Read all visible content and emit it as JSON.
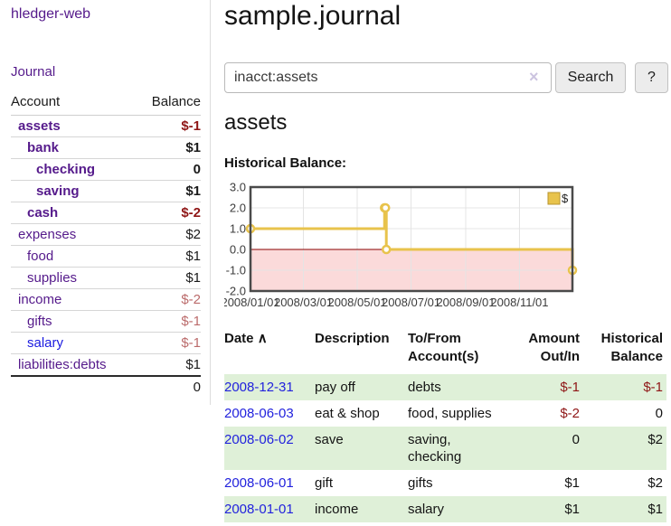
{
  "app": {
    "title": "hledger-web"
  },
  "sidebar": {
    "journal_label": "Journal",
    "accounts_table": {
      "account_header": "Account",
      "balance_header": "Balance",
      "rows": [
        {
          "account": "assets",
          "balance": "$-1",
          "indent": 0,
          "in_acct": true,
          "balance_style": "negative-strong",
          "link_state": "visited"
        },
        {
          "account": "bank",
          "balance": "$1",
          "indent": 1,
          "in_acct": true,
          "balance_style": "normal",
          "link_state": "visited"
        },
        {
          "account": "checking",
          "balance": "0",
          "indent": 2,
          "in_acct": true,
          "balance_style": "normal",
          "link_state": "visited"
        },
        {
          "account": "saving",
          "balance": "$1",
          "indent": 2,
          "in_acct": true,
          "balance_style": "normal",
          "link_state": "visited"
        },
        {
          "account": "cash",
          "balance": "$-2",
          "indent": 1,
          "in_acct": true,
          "balance_style": "negative-strong",
          "link_state": "visited"
        },
        {
          "account": "expenses",
          "balance": "$2",
          "indent": 0,
          "in_acct": false,
          "balance_style": "normal",
          "link_state": "visited"
        },
        {
          "account": "food",
          "balance": "$1",
          "indent": 1,
          "in_acct": false,
          "balance_style": "normal",
          "link_state": "visited"
        },
        {
          "account": "supplies",
          "balance": "$1",
          "indent": 1,
          "in_acct": false,
          "balance_style": "normal",
          "link_state": "visited"
        },
        {
          "account": "income",
          "balance": "$-2",
          "indent": 0,
          "in_acct": false,
          "balance_style": "negative-soft",
          "link_state": "visited"
        },
        {
          "account": "gifts",
          "balance": "$-1",
          "indent": 1,
          "in_acct": false,
          "balance_style": "negative-soft",
          "link_state": "visited"
        },
        {
          "account": "salary",
          "balance": "$-1",
          "indent": 1,
          "in_acct": false,
          "balance_style": "negative-soft",
          "link_state": "unvisited"
        },
        {
          "account": "liabilities:debts",
          "balance": "$1",
          "indent": 0,
          "in_acct": false,
          "balance_style": "normal",
          "link_state": "visited"
        }
      ],
      "total": "0"
    }
  },
  "main": {
    "page_title": "sample.journal",
    "search": {
      "value": "inacct:assets",
      "clear_icon": "×",
      "search_button": "Search",
      "help_button": "?"
    },
    "account_heading": "assets",
    "chart_title": "Historical Balance:"
  },
  "chart_data": {
    "type": "line",
    "step": true,
    "title": "Historical Balance",
    "series": [
      {
        "name": "$",
        "color": "#e8c34c",
        "marker_border": "#b89530",
        "points": [
          [
            "2008-01-01",
            1
          ],
          [
            "2008-06-01",
            2
          ],
          [
            "2008-06-02",
            2
          ],
          [
            "2008-06-03",
            0
          ],
          [
            "2008-12-31",
            -1
          ]
        ]
      }
    ],
    "x_range": [
      "2008-01-01",
      "2008-12-31"
    ],
    "y_range": [
      -2,
      3
    ],
    "x_ticks": [
      {
        "label": "2008/01/01",
        "date": "2008-01-01"
      },
      {
        "label": "2008/03/01",
        "date": "2008-03-01"
      },
      {
        "label": "2008/05/01",
        "date": "2008-05-01"
      },
      {
        "label": "2008/07/01",
        "date": "2008-07-01"
      },
      {
        "label": "2008/09/01",
        "date": "2008-09-01"
      },
      {
        "label": "2008/11/01",
        "date": "2008-11-01"
      }
    ],
    "y_ticks": [
      3.0,
      2.0,
      1.0,
      0.0,
      -1.0,
      -2.0
    ],
    "grid": true,
    "grid_color": "#e4e4e4",
    "border_color": "#4a4a4a",
    "tick_color": "#3c3c3c",
    "negative_region_color": "#fbdada",
    "zero_line_color": "#8b0000",
    "legend_position": "top-right"
  },
  "register": {
    "headers": {
      "date": "Date",
      "sort_icon": "∧",
      "description": "Description",
      "accounts": "To/From Account(s)",
      "amount": "Amount Out/In",
      "balance": "Historical Balance"
    },
    "rows": [
      {
        "date": "2008-12-31",
        "description": "pay off",
        "accounts": "debts",
        "amount": "$-1",
        "balance": "$-1",
        "amount_negative": true,
        "balance_negative": true,
        "highlighted": true
      },
      {
        "date": "2008-06-03",
        "description": "eat & shop",
        "accounts": "food, supplies",
        "amount": "$-2",
        "balance": "0",
        "amount_negative": true,
        "balance_negative": false,
        "highlighted": false
      },
      {
        "date": "2008-06-02",
        "description": "save",
        "accounts": "saving, checking",
        "amount": "0",
        "balance": "$2",
        "amount_negative": false,
        "balance_negative": false,
        "highlighted": true
      },
      {
        "date": "2008-06-01",
        "description": "gift",
        "accounts": "gifts",
        "amount": "$1",
        "balance": "$2",
        "amount_negative": false,
        "balance_negative": false,
        "highlighted": false
      },
      {
        "date": "2008-01-01",
        "description": "income",
        "accounts": "salary",
        "amount": "$1",
        "balance": "$1",
        "amount_negative": false,
        "balance_negative": false,
        "highlighted": true
      }
    ]
  },
  "colors": {
    "link_purple": "#551a8b",
    "link_blue": "#2222dd",
    "negative_strong": "#8f1616",
    "negative_soft": "#bb6b6b",
    "row_highlight": "#dff0d8"
  }
}
